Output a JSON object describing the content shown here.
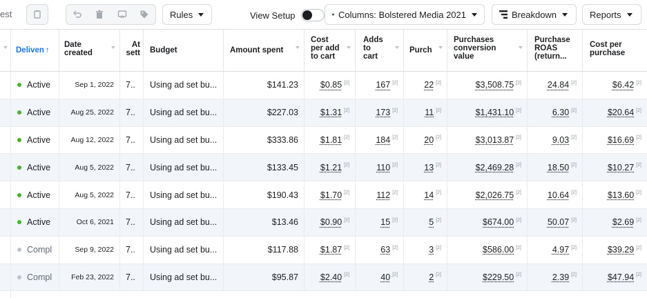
{
  "toolbar": {
    "left_partial": "est",
    "rules_label": "Rules",
    "view_setup_label": "View Setup",
    "columns_label": "Columns: Bolstered Media 2021",
    "breakdown_label": "Breakdown",
    "reports_label": "Reports"
  },
  "headers": {
    "delivery": "Deliven",
    "delivery_arrow": "↑",
    "date_created": [
      "Date",
      "created"
    ],
    "attribution": [
      "At",
      "sett"
    ],
    "budget": "Budget",
    "amount_spent": "Amount spent",
    "cost_per_add": [
      "Cost",
      "per add",
      "to cart"
    ],
    "adds_to_cart": [
      "Adds",
      "to",
      "cart"
    ],
    "purchases": "Purch",
    "purchases_value": [
      "Purchases",
      "conversion",
      "value"
    ],
    "roas": [
      "Purchase",
      "ROAS",
      "(return..."
    ],
    "cost_per_purchase": [
      "Cost per",
      "purchase"
    ]
  },
  "footnote": "[2]",
  "rows": [
    {
      "status": "Active",
      "date": "Sep 1, 2022",
      "attr": "7..",
      "budget": "Using ad set bu...",
      "spent": "$141.23",
      "cpa": "$0.85",
      "adds": "167",
      "purch": "22",
      "value": "$3,508.75",
      "roas": "24.84",
      "cpp": "$6.42"
    },
    {
      "status": "Active",
      "date": "Aug 25, 2022",
      "attr": "7..",
      "budget": "Using ad set bu...",
      "spent": "$227.03",
      "cpa": "$1.31",
      "adds": "173",
      "purch": "11",
      "value": "$1,431.10",
      "roas": "6.30",
      "cpp": "$20.64"
    },
    {
      "status": "Active",
      "date": "Aug 12, 2022",
      "attr": "7..",
      "budget": "Using ad set bu...",
      "spent": "$333.86",
      "cpa": "$1.81",
      "adds": "184",
      "purch": "20",
      "value": "$3,013.87",
      "roas": "9.03",
      "cpp": "$16.69"
    },
    {
      "status": "Active",
      "date": "Aug 5, 2022",
      "attr": "7..",
      "budget": "Using ad set bu...",
      "spent": "$133.45",
      "cpa": "$1.21",
      "adds": "110",
      "purch": "13",
      "value": "$2,469.28",
      "roas": "18.50",
      "cpp": "$10.27"
    },
    {
      "status": "Active",
      "date": "Aug 5, 2022",
      "attr": "7..",
      "budget": "Using ad set bu...",
      "spent": "$190.43",
      "cpa": "$1.70",
      "adds": "112",
      "purch": "14",
      "value": "$2,026.75",
      "roas": "10.64",
      "cpp": "$13.60"
    },
    {
      "status": "Active",
      "date": "Oct 6, 2021",
      "attr": "7..",
      "budget": "Using ad set bu...",
      "spent": "$13.46",
      "cpa": "$0.90",
      "adds": "15",
      "purch": "5",
      "value": "$674.00",
      "roas": "50.07",
      "cpp": "$2.69"
    },
    {
      "status": "Compl",
      "date": "Sep 9, 2022",
      "attr": "7..",
      "budget": "Using ad set bu...",
      "spent": "$117.88",
      "cpa": "$1.87",
      "adds": "63",
      "purch": "3",
      "value": "$586.00",
      "roas": "4.97",
      "cpp": "$39.29"
    },
    {
      "status": "Compl",
      "date": "Feb 23, 2022",
      "attr": "7..",
      "budget": "Using ad set bu...",
      "spent": "$95.87",
      "cpa": "$2.40",
      "adds": "40",
      "purch": "2",
      "value": "$229.50",
      "roas": "2.39",
      "cpp": "$47.94"
    }
  ],
  "colors": {
    "active_dot": "#42b72a",
    "completed_dot": "#bec3c9",
    "link_blue": "#1877f2"
  },
  "icons": [
    "copy-icon",
    "undo-icon",
    "trash-icon",
    "preview-icon",
    "tag-icon",
    "columns-icon",
    "breakdown-icon"
  ]
}
